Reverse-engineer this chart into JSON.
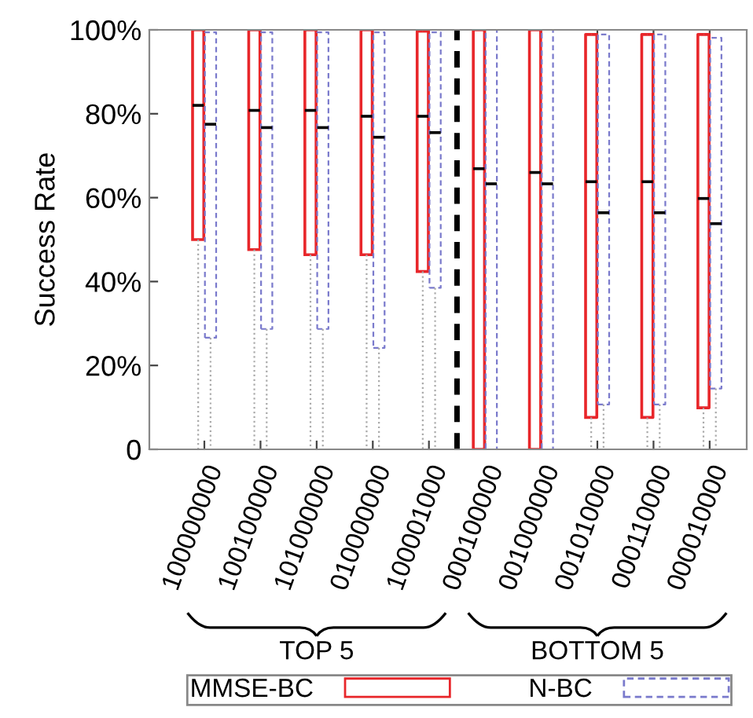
{
  "chart_data": {
    "type": "box",
    "ylabel": "Success Rate",
    "categories": [
      "100000000",
      "100100000",
      "101000000",
      "010000000",
      "100001000",
      "000100000",
      "001000000",
      "001010000",
      "000110000",
      "000010000"
    ],
    "series": [
      {
        "name": "MMSE-BC",
        "color": "#e8262a",
        "line_style": "solid",
        "boxes": [
          {
            "low": 0,
            "q1": 50,
            "median": 82,
            "q3": 100,
            "high": 100
          },
          {
            "low": 0,
            "q1": 47.6,
            "median": 80.8,
            "q3": 100,
            "high": 100
          },
          {
            "low": 0,
            "q1": 46.4,
            "median": 80.8,
            "q3": 100,
            "high": 100
          },
          {
            "low": 0,
            "q1": 46.4,
            "median": 79.4,
            "q3": 100,
            "high": 100
          },
          {
            "low": 0,
            "q1": 42.4,
            "median": 79.4,
            "q3": 99.7,
            "high": 99.7
          },
          {
            "low": 0,
            "q1": 0,
            "median": 66.9,
            "q3": 100,
            "high": 100
          },
          {
            "low": 0,
            "q1": 0,
            "median": 66,
            "q3": 100,
            "high": 100
          },
          {
            "low": 0,
            "q1": 7.6,
            "median": 63.8,
            "q3": 98.9,
            "high": 98.9
          },
          {
            "low": 0,
            "q1": 7.6,
            "median": 63.8,
            "q3": 98.9,
            "high": 98.9
          },
          {
            "low": 0,
            "q1": 9.9,
            "median": 59.8,
            "q3": 98.9,
            "high": 98.9
          }
        ]
      },
      {
        "name": "N-BC",
        "color": "#7a7acc",
        "line_style": "dashed",
        "boxes": [
          {
            "low": 0,
            "q1": 26.6,
            "median": 77.5,
            "q3": 99.4,
            "high": 99.4
          },
          {
            "low": 0,
            "q1": 28.7,
            "median": 76.7,
            "q3": 99.4,
            "high": 99.4
          },
          {
            "low": 0,
            "q1": 28.7,
            "median": 76.7,
            "q3": 99.4,
            "high": 99.4
          },
          {
            "low": 0,
            "q1": 24.2,
            "median": 74.4,
            "q3": 99.4,
            "high": 99.4
          },
          {
            "low": 0,
            "q1": 38.5,
            "median": 75.5,
            "q3": 99.4,
            "high": 99.4
          },
          {
            "low": 0,
            "q1": 0,
            "median": 63.3,
            "q3": 100,
            "high": 100
          },
          {
            "low": 0,
            "q1": 0,
            "median": 63.3,
            "q3": 100,
            "high": 100
          },
          {
            "low": 0,
            "q1": 10.7,
            "median": 56.4,
            "q3": 98.9,
            "high": 98.9
          },
          {
            "low": 0,
            "q1": 10.7,
            "median": 56.4,
            "q3": 98.9,
            "high": 98.9
          },
          {
            "low": 0,
            "q1": 14.5,
            "median": 53.8,
            "q3": 98.1,
            "high": 98.1
          }
        ]
      }
    ],
    "ylim": [
      0,
      100
    ],
    "yticks": [
      0,
      {
        "value": 20,
        "label": "20%"
      },
      {
        "value": 40,
        "label": "40%"
      },
      {
        "value": 60,
        "label": "60%"
      },
      {
        "value": 80,
        "label": "80%"
      },
      {
        "value": 100,
        "label": "100%"
      }
    ],
    "annotations": [
      "TOP 5",
      "BOTTOM 5"
    ],
    "legend": "bottom",
    "grid": false
  }
}
